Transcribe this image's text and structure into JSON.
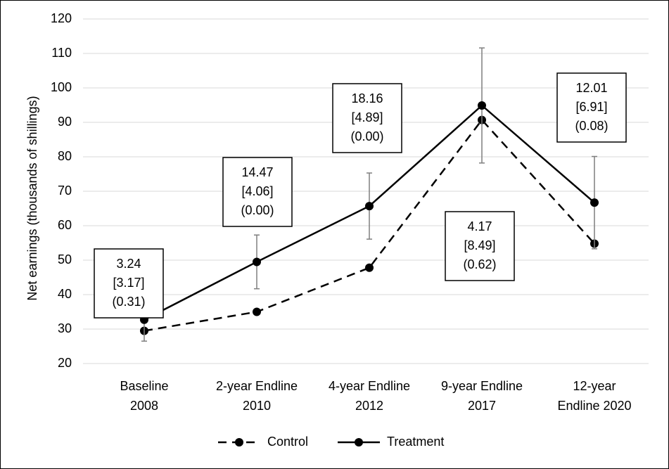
{
  "chart_data": {
    "type": "line",
    "y_label": "Net earnings (thousands of shillings)",
    "categories": [
      [
        "Baseline",
        "2008"
      ],
      [
        "2-year Endline",
        "2010"
      ],
      [
        "4-year Endline",
        "2012"
      ],
      [
        "9-year Endline",
        "2017"
      ],
      [
        "12-year",
        "Endline 2020"
      ]
    ],
    "series": [
      {
        "name": "Control",
        "color": "#000000",
        "dashed": true,
        "values": [
          29.5,
          35.0,
          47.8,
          90.7,
          54.8
        ]
      },
      {
        "name": "Treatment",
        "color": "#000000",
        "dashed": false,
        "values": [
          32.7,
          49.5,
          65.7,
          94.9,
          66.7
        ],
        "errors": [
          6.2,
          7.8,
          9.6,
          16.7,
          13.4
        ]
      }
    ],
    "annotations": [
      [
        "3.24",
        "[3.17]",
        "(0.31)"
      ],
      [
        "14.47",
        "[4.06]",
        "(0.00)"
      ],
      [
        "18.16",
        "[4.89]",
        "(0.00)"
      ],
      [
        "4.17",
        "[8.49]",
        "(0.62)"
      ],
      [
        "12.01",
        "[6.91]",
        "(0.08)"
      ]
    ],
    "ylim": [
      20,
      120
    ],
    "yticks": [
      20,
      30,
      40,
      50,
      60,
      70,
      80,
      90,
      100,
      110,
      120
    ],
    "grid": true,
    "legend": "bottom"
  }
}
